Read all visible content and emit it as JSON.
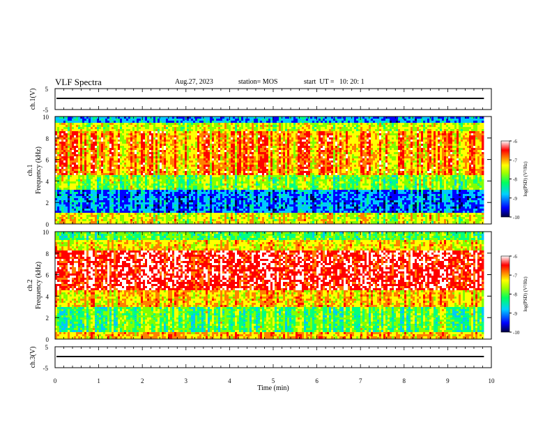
{
  "header": {
    "title": "VLF Spectra",
    "date": "Aug.27, 2023",
    "station": "station= MOS",
    "start": "start  UT =   10: 20: 1"
  },
  "chart_data": [
    {
      "type": "line",
      "panel": "ch1-waveform",
      "ylabel": "ch.1(V)",
      "yticks": [
        "5",
        "-5"
      ],
      "ylim": [
        -5,
        5
      ],
      "xlim": [
        0,
        10
      ],
      "trace_x_end": 9.83,
      "trace_level": 0
    },
    {
      "type": "heatmap",
      "panel": "ch1-spectrogram",
      "ylabel": "Frequency (kHz)",
      "ylabel2": "ch.1",
      "yticks": [
        "0",
        "2",
        "4",
        "6",
        "8",
        "10"
      ],
      "ylim": [
        0,
        10
      ],
      "xlim": [
        0,
        10
      ],
      "colorbar": {
        "label": "log(PSD) (V²/Hz)",
        "ticks": [
          "-6",
          "-7",
          "-8",
          "-9",
          "-10"
        ],
        "range": [
          -10,
          -6
        ]
      }
    },
    {
      "type": "heatmap",
      "panel": "ch2-spectrogram",
      "ylabel": "Frequency (kHz)",
      "ylabel2": "ch.2",
      "yticks": [
        "0",
        "2",
        "4",
        "6",
        "8",
        "10"
      ],
      "ylim": [
        0,
        10
      ],
      "xlim": [
        0,
        10
      ],
      "colorbar": {
        "label": "log(PSD) (V²/Hz)",
        "ticks": [
          "-6",
          "-7",
          "-8",
          "-9",
          "-10"
        ],
        "range": [
          -10,
          -6
        ]
      }
    },
    {
      "type": "line",
      "panel": "ch3-waveform",
      "ylabel": "ch.3(V)",
      "yticks": [
        "5",
        "-5"
      ],
      "ylim": [
        -5,
        5
      ],
      "xlim": [
        0,
        10
      ],
      "xticks": [
        "0",
        "1",
        "2",
        "3",
        "4",
        "5",
        "6",
        "7",
        "8",
        "9",
        "10"
      ],
      "xlabel": "Time  (min)",
      "trace_x_end": 9.83,
      "trace_level": 0
    }
  ],
  "colors": {
    "scale": [
      "#000050",
      "#0000ff",
      "#00c8ff",
      "#00ff80",
      "#80ff00",
      "#ffff00",
      "#ff8000",
      "#ff0000",
      "#ffffff"
    ]
  }
}
